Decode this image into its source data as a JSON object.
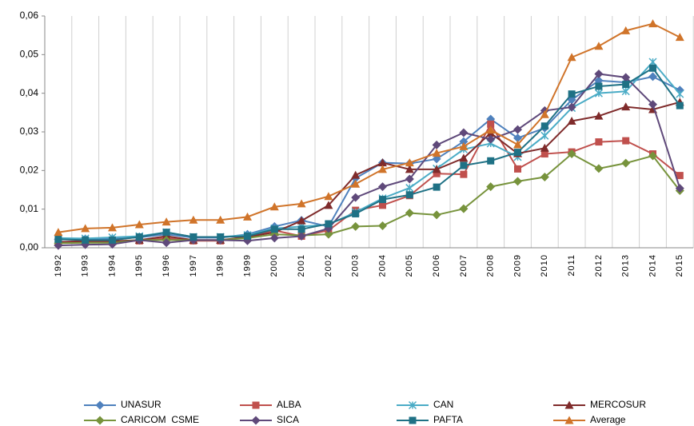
{
  "chart_data": {
    "type": "line",
    "categories": [
      "1992",
      "1993",
      "1994",
      "1995",
      "1996",
      "1997",
      "1998",
      "1999",
      "2000",
      "2001",
      "2002",
      "2003",
      "2004",
      "2005",
      "2006",
      "2007",
      "2008",
      "2009",
      "2010",
      "2011",
      "2012",
      "2013",
      "2014",
      "2015"
    ],
    "ylim": [
      0,
      0.06
    ],
    "yticks": [
      {
        "value": 0,
        "label": "0,00"
      },
      {
        "value": 0.01,
        "label": "0,01"
      },
      {
        "value": 0.02,
        "label": "0,02"
      },
      {
        "value": 0.03,
        "label": "0,03"
      },
      {
        "value": 0.04,
        "label": "0,04"
      },
      {
        "value": 0.05,
        "label": "0,05"
      },
      {
        "value": 0.06,
        "label": "0,06"
      }
    ],
    "grid": "x",
    "legend": "bottom",
    "series": [
      {
        "name": "UNASUR",
        "color": "#4f81bd",
        "marker": "diamond",
        "values": [
          0.0022,
          0.0023,
          0.0023,
          0.0027,
          0.0035,
          0.0026,
          0.0026,
          0.0035,
          0.0055,
          0.0071,
          0.0055,
          0.018,
          0.022,
          0.0218,
          0.023,
          0.0275,
          0.0333,
          0.0284,
          0.031,
          0.0383,
          0.0433,
          0.0428,
          0.0443,
          0.0408
        ]
      },
      {
        "name": "ALBA",
        "color": "#c0504d",
        "marker": "square",
        "values": [
          0.0015,
          0.0017,
          0.0017,
          0.0018,
          0.0025,
          0.0018,
          0.0018,
          0.003,
          0.0045,
          0.003,
          0.0045,
          0.0097,
          0.011,
          0.0135,
          0.0192,
          0.019,
          0.032,
          0.0204,
          0.0243,
          0.0248,
          0.0274,
          0.0277,
          0.0243,
          0.0187
        ]
      },
      {
        "name": "CAN",
        "color": "#4bacc6",
        "marker": "star",
        "values": [
          0.0025,
          0.0024,
          0.0027,
          0.003,
          0.004,
          0.0028,
          0.0028,
          0.0033,
          0.005,
          0.0055,
          0.006,
          0.0092,
          0.0128,
          0.0155,
          0.0205,
          0.0255,
          0.027,
          0.0235,
          0.029,
          0.0362,
          0.04,
          0.0405,
          0.0481,
          0.0398
        ]
      },
      {
        "name": "MERCOSUR",
        "color": "#7f2b2b",
        "marker": "triangle",
        "values": [
          0.0015,
          0.0017,
          0.0017,
          0.002,
          0.003,
          0.002,
          0.002,
          0.0028,
          0.004,
          0.007,
          0.011,
          0.0188,
          0.022,
          0.0203,
          0.0203,
          0.0232,
          0.0297,
          0.0244,
          0.0258,
          0.0328,
          0.0341,
          0.0365,
          0.0358,
          0.0377
        ]
      },
      {
        "name": "CARICOM  CSME",
        "color": "#77933c",
        "marker": "diamond",
        "values": [
          0.0012,
          0.0013,
          0.0013,
          0.002,
          0.002,
          0.002,
          0.002,
          0.0025,
          0.0035,
          0.0032,
          0.0035,
          0.0055,
          0.0057,
          0.009,
          0.0085,
          0.0101,
          0.0158,
          0.0172,
          0.0183,
          0.0243,
          0.0205,
          0.0219,
          0.0238,
          0.0148
        ]
      },
      {
        "name": "SICA",
        "color": "#5f497a",
        "marker": "diamond",
        "values": [
          0.0006,
          0.0008,
          0.0009,
          0.002,
          0.0013,
          0.002,
          0.002,
          0.0018,
          0.0025,
          0.003,
          0.005,
          0.013,
          0.0158,
          0.0178,
          0.0266,
          0.0298,
          0.0281,
          0.0306,
          0.0355,
          0.0364,
          0.045,
          0.0441,
          0.0371,
          0.0154
        ]
      },
      {
        "name": "PAFTA",
        "color": "#1f7185",
        "marker": "square",
        "values": [
          0.0022,
          0.002,
          0.002,
          0.0028,
          0.004,
          0.0028,
          0.0028,
          0.003,
          0.0048,
          0.0048,
          0.0062,
          0.0088,
          0.0125,
          0.0137,
          0.0157,
          0.0213,
          0.0225,
          0.0247,
          0.0315,
          0.0398,
          0.0418,
          0.0423,
          0.0465,
          0.0368
        ]
      },
      {
        "name": "Average",
        "color": "#d0742a",
        "marker": "triangle",
        "values": [
          0.004,
          0.005,
          0.0052,
          0.006,
          0.0067,
          0.0072,
          0.0072,
          0.008,
          0.0106,
          0.0114,
          0.0133,
          0.0165,
          0.0203,
          0.022,
          0.0245,
          0.0262,
          0.0305,
          0.0267,
          0.0345,
          0.0493,
          0.0522,
          0.0562,
          0.058,
          0.0545
        ]
      }
    ]
  }
}
